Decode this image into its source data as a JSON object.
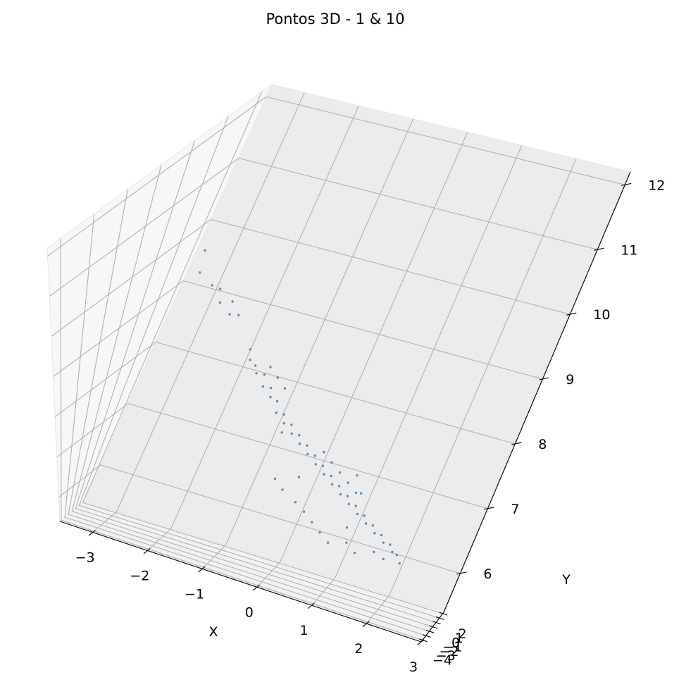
{
  "chart_data": {
    "type": "scatter",
    "title": "Pontos 3D - 1 & 10",
    "xlabel": "X",
    "ylabel": "Y",
    "zlabel": "",
    "projection": "3d",
    "xlim": [
      -3.6,
      3.0
    ],
    "ylim": [
      -4.4,
      2.3
    ],
    "zlim": [
      5.4,
      12.2
    ],
    "xticks": [
      -3,
      -2,
      -1,
      0,
      1,
      2,
      3
    ],
    "xtick_labels": [
      "−3",
      "−2",
      "−1",
      "0",
      "1",
      "2",
      "3"
    ],
    "yticks": [
      -4,
      -3,
      -2,
      -1,
      0,
      1,
      2
    ],
    "ytick_labels": [
      "−4",
      "−3",
      "−2",
      "−1",
      "0",
      "1",
      "2"
    ],
    "zticks": [
      6,
      7,
      8,
      9,
      10,
      11,
      12
    ],
    "ztick_labels": [
      "6",
      "7",
      "8",
      "9",
      "10",
      "11",
      "12"
    ],
    "grid": true,
    "legend": null,
    "marker_color": "#1f77b4",
    "series": [
      {
        "points": [
          [
            -3.0,
            0.5,
            10.2
          ],
          [
            -2.9,
            0.3,
            9.9
          ],
          [
            -2.6,
            0.2,
            9.8
          ],
          [
            -2.5,
            0.4,
            9.7
          ],
          [
            -2.35,
            0.1,
            9.6
          ],
          [
            -2.2,
            0.3,
            9.6
          ],
          [
            -2.1,
            0.0,
            9.5
          ],
          [
            -2.0,
            0.2,
            9.45
          ],
          [
            -1.7,
            0.6,
            8.8
          ],
          [
            -1.6,
            0.4,
            8.7
          ],
          [
            -1.5,
            0.5,
            8.6
          ],
          [
            -1.4,
            0.3,
            8.55
          ],
          [
            -1.3,
            0.5,
            8.5
          ],
          [
            -1.2,
            0.2,
            8.4
          ],
          [
            -1.1,
            0.4,
            8.35
          ],
          [
            -1.0,
            0.1,
            8.3
          ],
          [
            -0.9,
            0.3,
            8.2
          ],
          [
            -0.8,
            0.0,
            8.1
          ],
          [
            -0.7,
            0.2,
            8.05
          ],
          [
            -0.6,
            -0.1,
            8.0
          ],
          [
            -0.5,
            0.1,
            7.95
          ],
          [
            -0.4,
            -0.2,
            7.9
          ],
          [
            -0.3,
            0.0,
            7.85
          ],
          [
            -0.2,
            -0.3,
            7.8
          ],
          [
            -0.1,
            -0.1,
            7.75
          ],
          [
            0.0,
            -0.4,
            7.7
          ],
          [
            0.1,
            -0.2,
            7.65
          ],
          [
            0.2,
            -0.5,
            7.6
          ],
          [
            0.3,
            -0.3,
            7.55
          ],
          [
            0.4,
            -0.6,
            7.5
          ],
          [
            0.5,
            -0.4,
            7.45
          ],
          [
            0.6,
            -0.7,
            7.4
          ],
          [
            0.7,
            -0.5,
            7.35
          ],
          [
            0.8,
            -0.8,
            7.3
          ],
          [
            0.9,
            -0.6,
            7.25
          ],
          [
            1.0,
            -0.9,
            7.2
          ],
          [
            1.1,
            -0.7,
            7.15
          ],
          [
            1.2,
            -1.0,
            7.1
          ],
          [
            1.3,
            -0.8,
            7.05
          ],
          [
            1.4,
            -1.1,
            7.0
          ],
          [
            1.5,
            -0.9,
            6.95
          ],
          [
            1.6,
            -1.2,
            6.9
          ],
          [
            1.7,
            -1.0,
            6.85
          ],
          [
            1.8,
            -1.3,
            6.8
          ],
          [
            1.9,
            -1.1,
            6.75
          ],
          [
            2.0,
            -1.4,
            6.7
          ],
          [
            -1.3,
            0.8,
            8.55
          ],
          [
            -1.1,
            0.7,
            8.45
          ],
          [
            -0.9,
            0.6,
            8.35
          ],
          [
            0.2,
            0.0,
            7.7
          ],
          [
            0.4,
            -0.1,
            7.6
          ],
          [
            0.6,
            -0.2,
            7.5
          ],
          [
            0.8,
            -0.3,
            7.4
          ],
          [
            1.0,
            -0.4,
            7.3
          ],
          [
            0.5,
            -1.2,
            6.7
          ],
          [
            0.7,
            -1.4,
            6.6
          ],
          [
            0.9,
            -1.6,
            6.5
          ],
          [
            0.3,
            -1.0,
            6.8
          ],
          [
            0.1,
            -0.9,
            6.9
          ],
          [
            -0.2,
            -0.7,
            7.0
          ],
          [
            -0.4,
            -0.5,
            7.1
          ],
          [
            1.2,
            -1.5,
            6.6
          ],
          [
            1.4,
            -1.7,
            6.5
          ],
          [
            1.1,
            -1.1,
            6.8
          ],
          [
            0.0,
            -0.6,
            7.3
          ],
          [
            -0.6,
            0.0,
            7.8
          ],
          [
            1.7,
            -1.5,
            6.6
          ],
          [
            1.9,
            -1.6,
            6.55
          ],
          [
            2.1,
            -1.5,
            6.7
          ],
          [
            2.2,
            -1.7,
            6.6
          ],
          [
            0.9,
            -0.2,
            7.55
          ],
          [
            1.1,
            -0.5,
            7.35
          ]
        ]
      }
    ]
  }
}
